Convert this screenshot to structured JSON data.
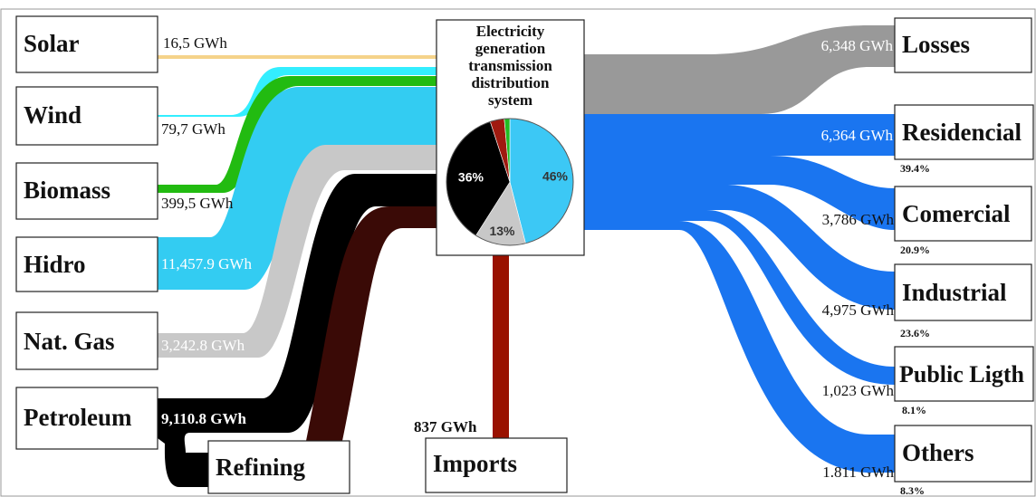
{
  "center": {
    "title_lines": [
      "Electricity",
      "generation",
      "transmission",
      "distribution",
      "system"
    ],
    "pie": [
      {
        "label": "46%",
        "value": 46,
        "color": "#3cc8f5",
        "label_color": "#333333"
      },
      {
        "label": "13%",
        "value": 13,
        "color": "#c8c8c8",
        "label_color": "#333333"
      },
      {
        "label": "36%",
        "value": 36,
        "color": "#000000",
        "label_color": "#ffffff"
      },
      {
        "label": "",
        "value": 3.6,
        "color": "#a01a10",
        "label_color": "#ffffff"
      },
      {
        "label": "",
        "value": 1.4,
        "color": "#22bb22",
        "label_color": "#ffffff"
      }
    ]
  },
  "sources": [
    {
      "id": "solar",
      "label": "Solar",
      "value_label": "16,5 GWh",
      "color": "#f5d38a"
    },
    {
      "id": "wind",
      "label": "Wind",
      "value_label": "79,7 GWh",
      "color": "#33eeff"
    },
    {
      "id": "biomass",
      "label": "Biomass",
      "value_label": "399,5 GWh",
      "color": "#22bb11"
    },
    {
      "id": "hidro",
      "label": "Hidro",
      "value_label": "11,457.9 GWh",
      "color": "#33ccf2"
    },
    {
      "id": "natgas",
      "label": "Nat. Gas",
      "value_label": "3,242.8 GWh",
      "color": "#c8c8c8"
    },
    {
      "id": "petroleum",
      "label": "Petroleum",
      "value_label": "9,110.8 GWh",
      "color": "#000000"
    }
  ],
  "intermediate": [
    {
      "id": "refining",
      "label": "Refining",
      "color": "#3a0a06"
    },
    {
      "id": "imports",
      "label": "Imports",
      "value_label": "837 GWh",
      "color": "#991100"
    }
  ],
  "outputs": [
    {
      "id": "losses",
      "label": "Losses",
      "value_label": "6,348 GWh",
      "percent": "",
      "color": "#999999"
    },
    {
      "id": "residencial",
      "label": "Residencial",
      "value_label": "6,364 GWh",
      "percent": "39.4%",
      "color": "#1a75f0"
    },
    {
      "id": "comercial",
      "label": "Comercial",
      "value_label": "3,786 GWh",
      "percent": "20.9%",
      "color": "#1a75f0"
    },
    {
      "id": "industrial",
      "label": "Industrial",
      "value_label": "4,975 GWh",
      "percent": "23.6%",
      "color": "#1a75f0"
    },
    {
      "id": "public",
      "label": "Public Ligth",
      "value_label": "1,023 GWh",
      "percent": "8.1%",
      "color": "#1a75f0"
    },
    {
      "id": "others",
      "label": "Others",
      "value_label": "1.811 GWh",
      "percent": "8.3%",
      "color": "#1a75f0"
    }
  ]
}
